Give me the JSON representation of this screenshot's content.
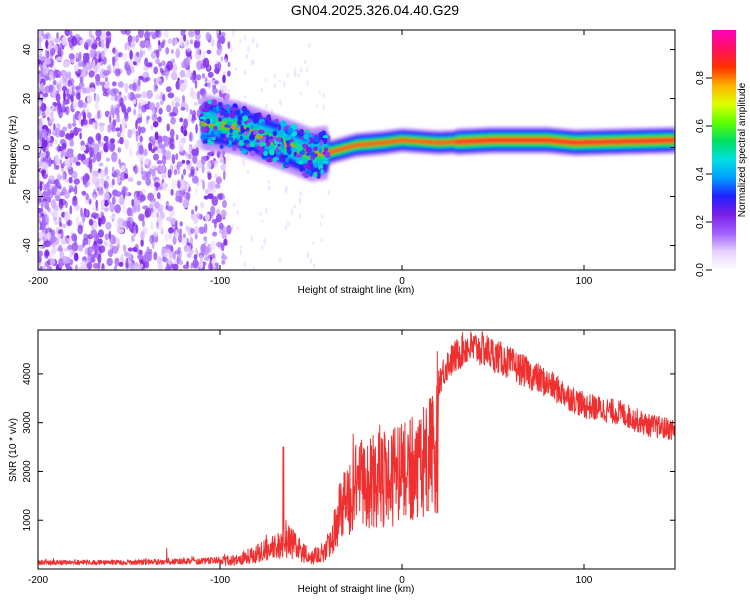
{
  "title": "GN04.2025.326.04.40.G29",
  "chart_data": [
    {
      "type": "heatmap",
      "name": "spectrogram",
      "xlabel": "Height of straight line (km)",
      "ylabel": "Frequency (Hz)",
      "xlim": [
        -200,
        150
      ],
      "ylim": [
        -50,
        48
      ],
      "x_ticks": [
        -200,
        -100,
        0,
        100
      ],
      "y_ticks": [
        -40,
        -20,
        0,
        20,
        40
      ],
      "colorbar": {
        "label": "Normalized spectral amplitude",
        "range": [
          0,
          1
        ],
        "ticks": [
          0.0,
          0.2,
          0.4,
          0.6,
          0.8
        ],
        "colors": [
          "#ffffff",
          "#e6d0ff",
          "#a060ff",
          "#7a1fe6",
          "#2020ff",
          "#00a0ff",
          "#00e0e0",
          "#00e060",
          "#60ff00",
          "#e0ff00",
          "#ffb000",
          "#ff3000",
          "#ff1060",
          "#ff00c0"
        ]
      },
      "ridge": {
        "description_points": [
          {
            "x": -105,
            "y": 10
          },
          {
            "x": -90,
            "y": 8
          },
          {
            "x": -75,
            "y": 4
          },
          {
            "x": -60,
            "y": 0
          },
          {
            "x": -50,
            "y": -3
          },
          {
            "x": -40,
            "y": -2
          },
          {
            "x": -25,
            "y": 1
          },
          {
            "x": -10,
            "y": 2
          },
          {
            "x": 0,
            "y": 3
          },
          {
            "x": 20,
            "y": 2
          },
          {
            "x": 50,
            "y": 3
          },
          {
            "x": 80,
            "y": 3
          },
          {
            "x": 95,
            "y": 2
          },
          {
            "x": 150,
            "y": 3
          }
        ]
      }
    },
    {
      "type": "line",
      "name": "snr",
      "xlabel": "Height of straight line (km)",
      "ylabel": "SNR (10 * v/v)",
      "xlim": [
        -200,
        150
      ],
      "ylim": [
        0,
        4900
      ],
      "x_ticks": [
        -200,
        -100,
        0,
        100
      ],
      "y_ticks": [
        1000,
        2000,
        3000,
        4000
      ],
      "series": [
        {
          "name": "SNR",
          "color": "#f03030",
          "envelope": [
            {
              "x": -200,
              "y": 180
            },
            {
              "x": -150,
              "y": 190
            },
            {
              "x": -110,
              "y": 220
            },
            {
              "x": -90,
              "y": 300
            },
            {
              "x": -75,
              "y": 600
            },
            {
              "x": -62,
              "y": 900
            },
            {
              "x": -50,
              "y": 350
            },
            {
              "x": -40,
              "y": 700
            },
            {
              "x": -33,
              "y": 2000
            },
            {
              "x": -25,
              "y": 2600
            },
            {
              "x": -15,
              "y": 2800
            },
            {
              "x": -5,
              "y": 2900
            },
            {
              "x": 5,
              "y": 3100
            },
            {
              "x": 15,
              "y": 3500
            },
            {
              "x": 25,
              "y": 4200
            },
            {
              "x": 35,
              "y": 4550
            },
            {
              "x": 45,
              "y": 4500
            },
            {
              "x": 60,
              "y": 4200
            },
            {
              "x": 80,
              "y": 3800
            },
            {
              "x": 100,
              "y": 3350
            },
            {
              "x": 120,
              "y": 3200
            },
            {
              "x": 135,
              "y": 2950
            },
            {
              "x": 150,
              "y": 2850
            }
          ]
        }
      ]
    }
  ]
}
